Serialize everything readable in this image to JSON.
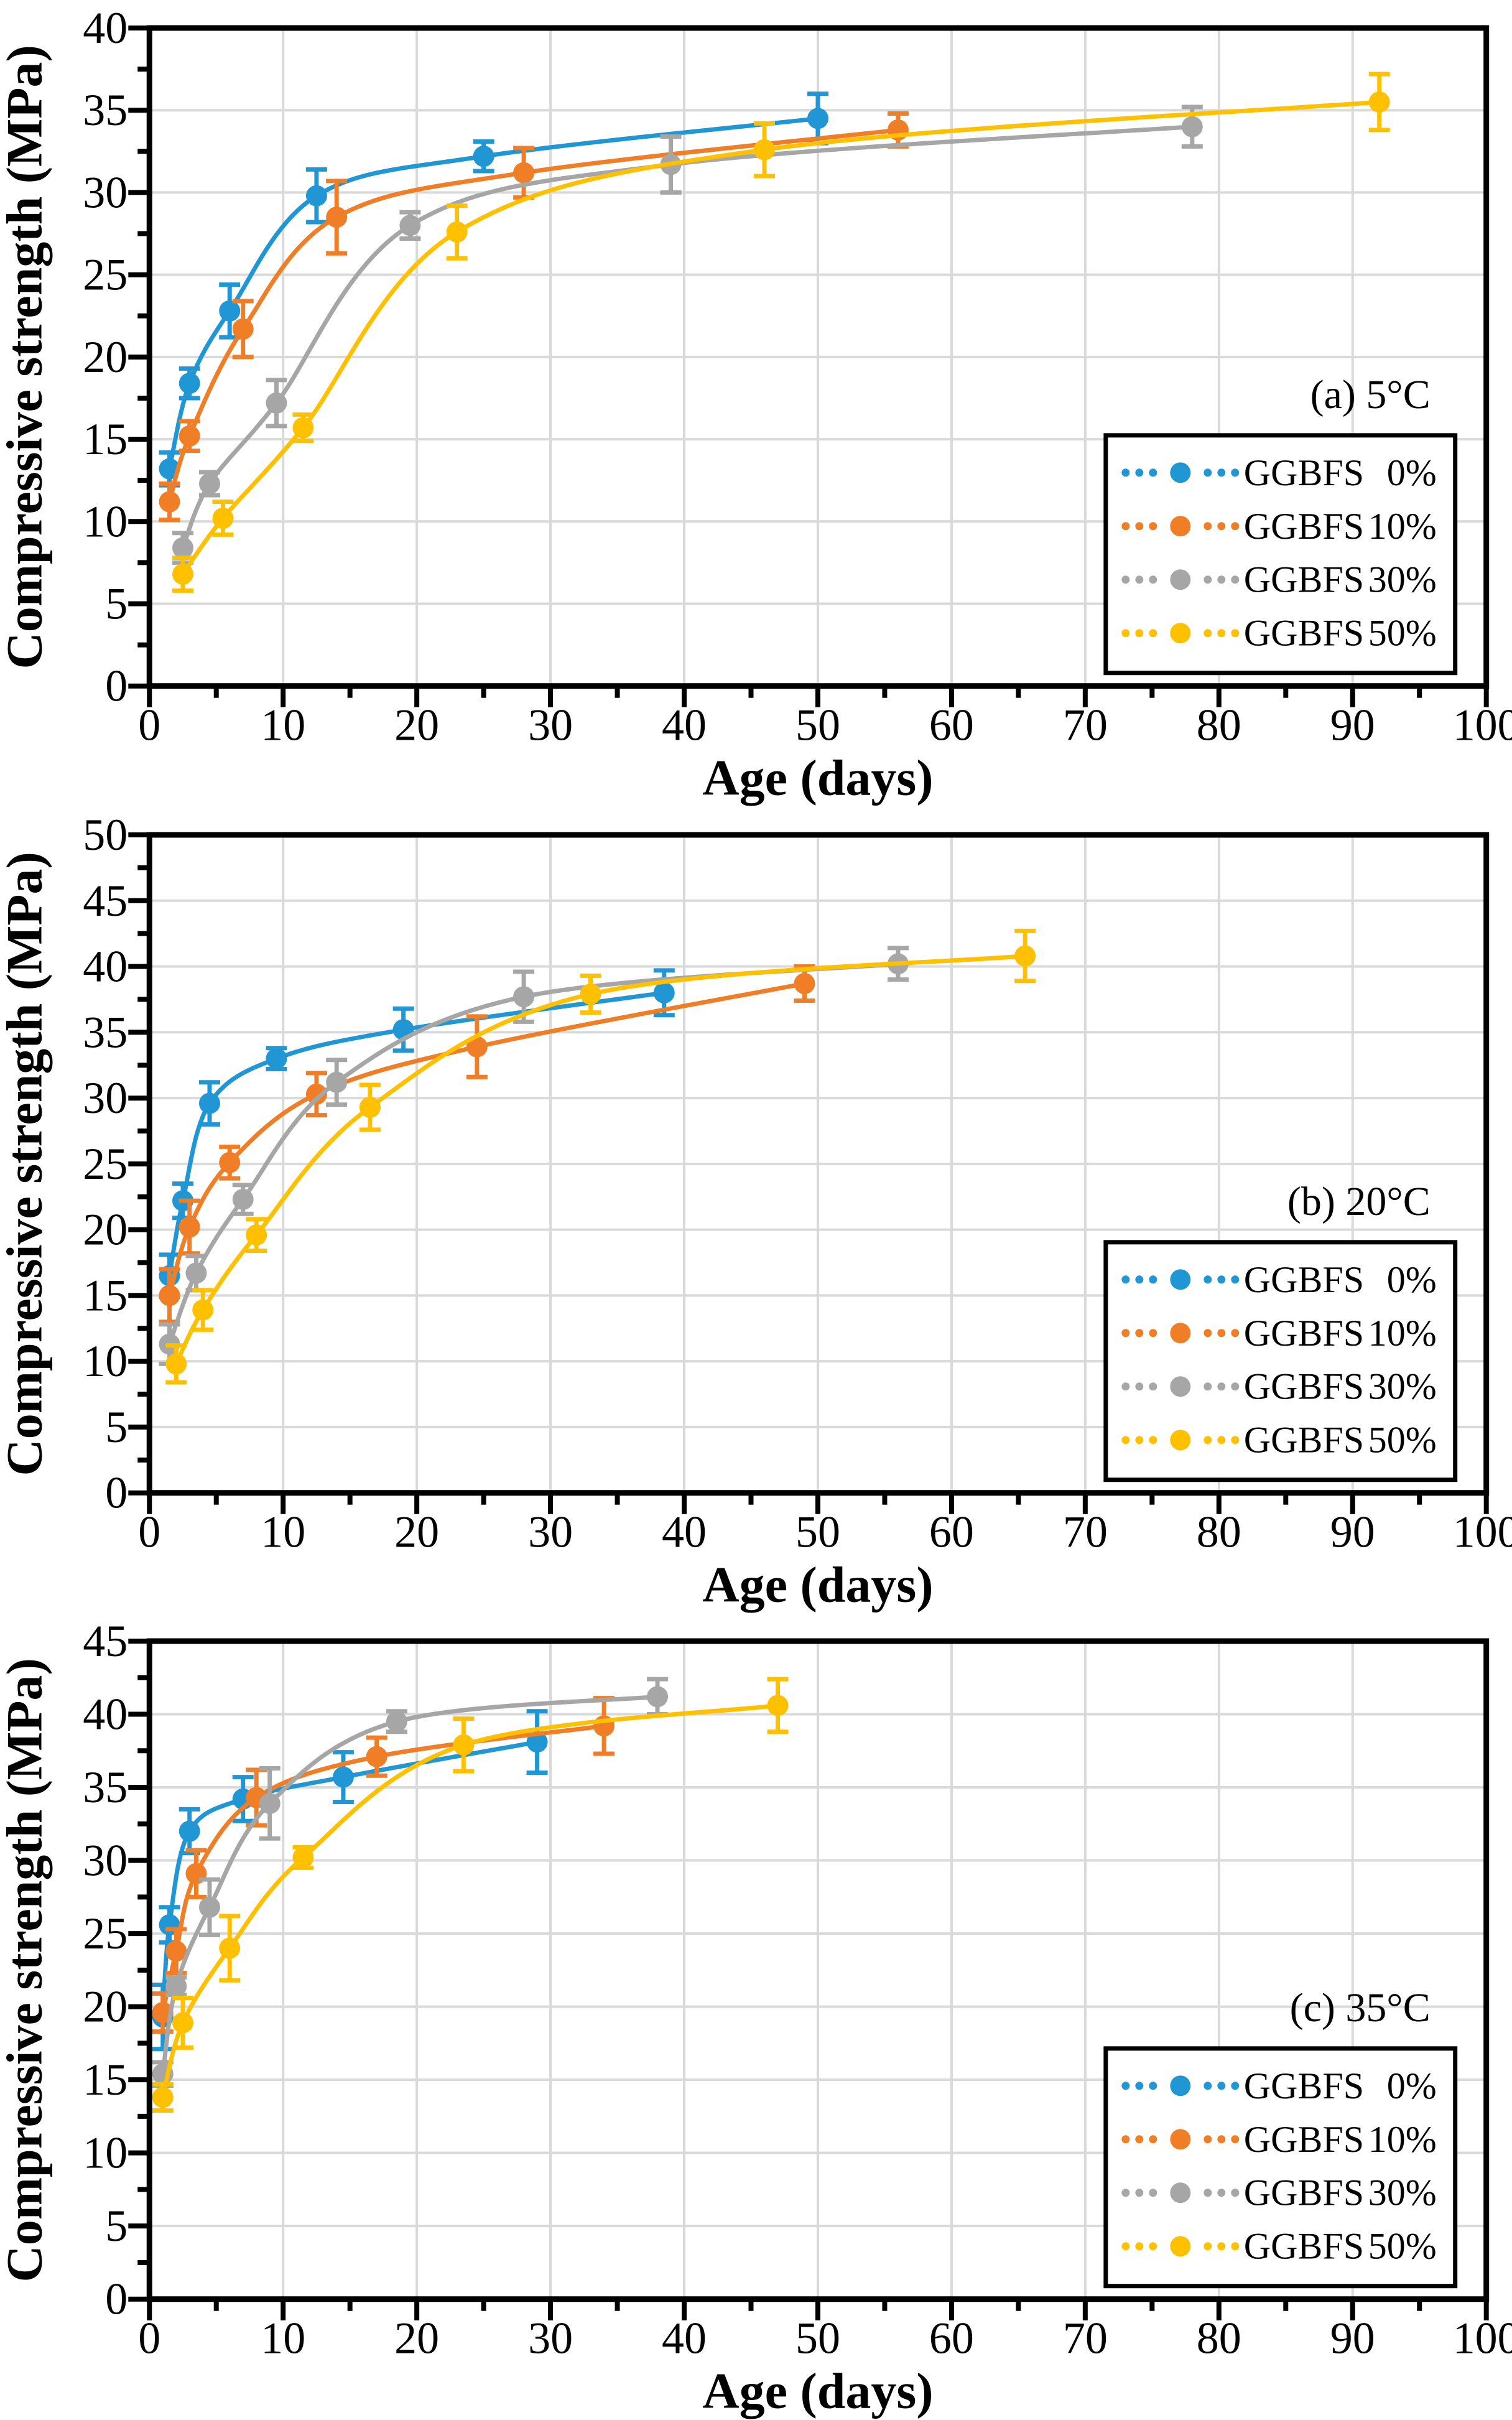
{
  "figure": {
    "xlabel": "Age (days)",
    "ylabel": "Compressive strength (MPa)"
  },
  "palette": {
    "blue": "#2196D5",
    "orange": "#F07E26",
    "gray": "#A6A6A6",
    "yellow": "#FFC000",
    "grid": "#D9D9D9",
    "axis": "#000000",
    "legend_bg": "#FFFFFF"
  },
  "chart_data": [
    {
      "id": "a",
      "type": "line",
      "annotation": "(a) 5°C",
      "xlabel": "Age (days)",
      "ylabel": "Compressive strength (MPa)",
      "xlim": [
        0,
        100
      ],
      "ylim": [
        0,
        40
      ],
      "xtick_step": 10,
      "x_minor_step": 5,
      "ytick_step": 5,
      "y_minor_step": 2.5,
      "grid": true,
      "legend_position": "lower right",
      "legend": [
        {
          "label": "GGBFS",
          "pct": "0%",
          "color": "blue"
        },
        {
          "label": "GGBFS",
          "pct": "10%",
          "color": "orange"
        },
        {
          "label": "GGBFS",
          "pct": "30%",
          "color": "gray"
        },
        {
          "label": "GGBFS",
          "pct": "50%",
          "color": "yellow"
        }
      ],
      "series": [
        {
          "name": "GGBFS 0%",
          "color": "blue",
          "points": [
            {
              "x": 1.5,
              "y": 13.2,
              "e": 1.0
            },
            {
              "x": 3,
              "y": 18.4,
              "e": 0.9
            },
            {
              "x": 6,
              "y": 22.8,
              "e": 1.6
            },
            {
              "x": 12.5,
              "y": 29.8,
              "e": 1.6
            },
            {
              "x": 25,
              "y": 32.2,
              "e": 0.9
            },
            {
              "x": 50,
              "y": 34.5,
              "e": 1.5
            }
          ]
        },
        {
          "name": "GGBFS 10%",
          "color": "orange",
          "points": [
            {
              "x": 1.5,
              "y": 11.2,
              "e": 1.1
            },
            {
              "x": 3,
              "y": 15.2,
              "e": 0.9
            },
            {
              "x": 7,
              "y": 21.7,
              "e": 1.7
            },
            {
              "x": 14,
              "y": 28.5,
              "e": 2.2
            },
            {
              "x": 28,
              "y": 31.2,
              "e": 1.5
            },
            {
              "x": 56,
              "y": 33.8,
              "e": 1.0
            }
          ]
        },
        {
          "name": "GGBFS 30%",
          "color": "gray",
          "points": [
            {
              "x": 2.5,
              "y": 8.4,
              "e": 0.9
            },
            {
              "x": 4.5,
              "y": 12.3,
              "e": 0.7
            },
            {
              "x": 9.5,
              "y": 17.2,
              "e": 1.4
            },
            {
              "x": 19.5,
              "y": 28.0,
              "e": 0.8
            },
            {
              "x": 39,
              "y": 31.7,
              "e": 1.7
            },
            {
              "x": 78,
              "y": 34.0,
              "e": 1.2
            }
          ]
        },
        {
          "name": "GGBFS 50%",
          "color": "yellow",
          "points": [
            {
              "x": 2.5,
              "y": 6.8,
              "e": 1.0
            },
            {
              "x": 5.5,
              "y": 10.2,
              "e": 1.0
            },
            {
              "x": 11.5,
              "y": 15.7,
              "e": 0.8
            },
            {
              "x": 23,
              "y": 27.6,
              "e": 1.6
            },
            {
              "x": 46,
              "y": 32.6,
              "e": 1.6
            },
            {
              "x": 92,
              "y": 35.5,
              "e": 1.7
            }
          ]
        }
      ]
    },
    {
      "id": "b",
      "type": "line",
      "annotation": "(b) 20°C",
      "xlabel": "Age (days)",
      "ylabel": "Compressive strength (MPa)",
      "xlim": [
        0,
        100
      ],
      "ylim": [
        0,
        50
      ],
      "xtick_step": 10,
      "x_minor_step": 5,
      "ytick_step": 5,
      "y_minor_step": 2.5,
      "grid": true,
      "legend_position": "lower right",
      "legend": [
        {
          "label": "GGBFS",
          "pct": "0%",
          "color": "blue"
        },
        {
          "label": "GGBFS",
          "pct": "10%",
          "color": "orange"
        },
        {
          "label": "GGBFS",
          "pct": "30%",
          "color": "gray"
        },
        {
          "label": "GGBFS",
          "pct": "50%",
          "color": "yellow"
        }
      ],
      "series": [
        {
          "name": "GGBFS 0%",
          "color": "blue",
          "points": [
            {
              "x": 1.5,
              "y": 16.5,
              "e": 1.6
            },
            {
              "x": 2.5,
              "y": 22.2,
              "e": 1.3
            },
            {
              "x": 4.5,
              "y": 29.6,
              "e": 1.6
            },
            {
              "x": 9.5,
              "y": 33.0,
              "e": 0.8
            },
            {
              "x": 19,
              "y": 35.2,
              "e": 1.6
            },
            {
              "x": 38.5,
              "y": 38.0,
              "e": 1.7
            }
          ]
        },
        {
          "name": "GGBFS 10%",
          "color": "orange",
          "points": [
            {
              "x": 1.5,
              "y": 15.0,
              "e": 2.0
            },
            {
              "x": 3,
              "y": 20.2,
              "e": 2.0
            },
            {
              "x": 6,
              "y": 25.1,
              "e": 1.2
            },
            {
              "x": 12.5,
              "y": 30.3,
              "e": 1.6
            },
            {
              "x": 24.5,
              "y": 33.9,
              "e": 2.3
            },
            {
              "x": 49,
              "y": 38.7,
              "e": 1.3
            }
          ]
        },
        {
          "name": "GGBFS 30%",
          "color": "gray",
          "points": [
            {
              "x": 1.5,
              "y": 11.3,
              "e": 1.5
            },
            {
              "x": 3.5,
              "y": 16.7,
              "e": 1.3
            },
            {
              "x": 7,
              "y": 22.3,
              "e": 1.1
            },
            {
              "x": 14,
              "y": 31.2,
              "e": 1.7
            },
            {
              "x": 28,
              "y": 37.7,
              "e": 1.9
            },
            {
              "x": 56,
              "y": 40.2,
              "e": 1.2
            }
          ]
        },
        {
          "name": "GGBFS 50%",
          "color": "yellow",
          "points": [
            {
              "x": 2,
              "y": 9.8,
              "e": 1.4
            },
            {
              "x": 4,
              "y": 13.9,
              "e": 1.5
            },
            {
              "x": 8,
              "y": 19.6,
              "e": 1.2
            },
            {
              "x": 16.5,
              "y": 29.3,
              "e": 1.7
            },
            {
              "x": 33,
              "y": 37.9,
              "e": 1.4
            },
            {
              "x": 65.5,
              "y": 40.8,
              "e": 1.9
            }
          ]
        }
      ]
    },
    {
      "id": "c",
      "type": "line",
      "annotation": "(c) 35°C",
      "xlabel": "Age (days)",
      "ylabel": "Compressive strength (MPa)",
      "xlim": [
        0,
        100
      ],
      "ylim": [
        0,
        45
      ],
      "xtick_step": 10,
      "x_minor_step": 5,
      "ytick_step": 5,
      "y_minor_step": 2.5,
      "grid": true,
      "legend_position": "lower right",
      "legend": [
        {
          "label": "GGBFS",
          "pct": "0%",
          "color": "blue"
        },
        {
          "label": "GGBFS",
          "pct": "10%",
          "color": "orange"
        },
        {
          "label": "GGBFS",
          "pct": "30%",
          "color": "gray"
        },
        {
          "label": "GGBFS",
          "pct": "50%",
          "color": "yellow"
        }
      ],
      "series": [
        {
          "name": "GGBFS 0%",
          "color": "blue",
          "points": [
            {
              "x": 1,
              "y": 19.3,
              "e": 2.2
            },
            {
              "x": 1.5,
              "y": 25.6,
              "e": 1.2
            },
            {
              "x": 3,
              "y": 32.0,
              "e": 1.5
            },
            {
              "x": 7,
              "y": 34.2,
              "e": 1.5
            },
            {
              "x": 14.5,
              "y": 35.7,
              "e": 1.7
            },
            {
              "x": 29,
              "y": 38.1,
              "e": 2.1
            }
          ]
        },
        {
          "name": "GGBFS 10%",
          "color": "orange",
          "points": [
            {
              "x": 1,
              "y": 19.6,
              "e": 1.3
            },
            {
              "x": 2,
              "y": 23.8,
              "e": 1.5
            },
            {
              "x": 3.5,
              "y": 29.1,
              "e": 1.6
            },
            {
              "x": 8,
              "y": 34.3,
              "e": 1.9
            },
            {
              "x": 17,
              "y": 37.1,
              "e": 1.3
            },
            {
              "x": 34,
              "y": 39.2,
              "e": 1.9
            }
          ]
        },
        {
          "name": "GGBFS 30%",
          "color": "gray",
          "points": [
            {
              "x": 1,
              "y": 15.4,
              "e": 0.8
            },
            {
              "x": 2,
              "y": 21.4,
              "e": 0.6
            },
            {
              "x": 4.5,
              "y": 26.8,
              "e": 1.9
            },
            {
              "x": 9,
              "y": 33.9,
              "e": 2.4
            },
            {
              "x": 18.5,
              "y": 39.5,
              "e": 0.7
            },
            {
              "x": 38,
              "y": 41.2,
              "e": 1.2
            }
          ]
        },
        {
          "name": "GGBFS 50%",
          "color": "yellow",
          "points": [
            {
              "x": 1,
              "y": 13.8,
              "e": 0.9
            },
            {
              "x": 2.5,
              "y": 18.9,
              "e": 1.7
            },
            {
              "x": 6,
              "y": 24.0,
              "e": 2.2
            },
            {
              "x": 11.5,
              "y": 30.2,
              "e": 0.7
            },
            {
              "x": 23.5,
              "y": 37.9,
              "e": 1.8
            },
            {
              "x": 47,
              "y": 40.6,
              "e": 1.8
            }
          ]
        }
      ]
    }
  ]
}
